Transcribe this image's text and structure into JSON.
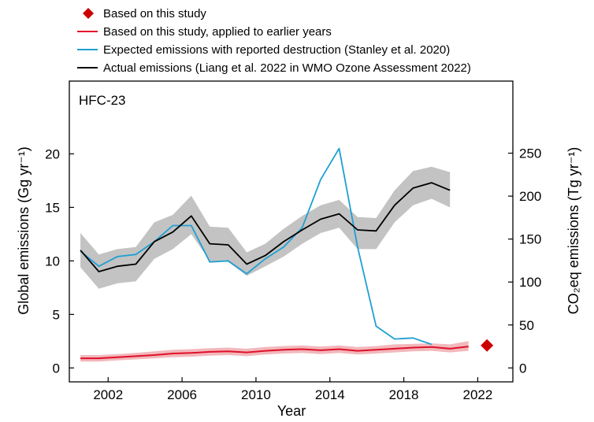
{
  "chart_data": {
    "type": "line",
    "panel_label": "HFC-23",
    "xlabel": "Year",
    "ylabel": "Global emissions (Gg yr⁻¹)",
    "y2label": "CO₂eq emissions (Tg yr⁻¹)",
    "xlim": [
      1999.9,
      2023.9
    ],
    "ylim": [
      -1.3,
      26.8
    ],
    "y2lim": [
      -16.2,
      333.9
    ],
    "x_ticks": [
      2002,
      2006,
      2010,
      2014,
      2018,
      2022
    ],
    "y_ticks": [
      0,
      5,
      10,
      15,
      20
    ],
    "y2_ticks": [
      0,
      50,
      100,
      150,
      200,
      250
    ],
    "grid": false,
    "legend_position": "top-left",
    "legend": [
      {
        "label": "Based on this study",
        "marker": "diamond",
        "color": "#cc0000"
      },
      {
        "label": "Based on this study, applied to earlier years",
        "marker": "line",
        "color": "#e0102a"
      },
      {
        "label": "Expected emissions with reported destruction (Stanley et al. 2020)",
        "marker": "line",
        "color": "#1f9fd3"
      },
      {
        "label": "Actual emissions (Liang et al. 2022 in WMO Ozone Assessment 2022)",
        "marker": "line",
        "color": "#000000"
      }
    ],
    "colors": {
      "actual_line": "#000000",
      "actual_band": "#c3c3c3",
      "expected_line": "#1f9fd3",
      "study_line": "#e0102a",
      "study_band": "#f2b8bb",
      "study_point": "#cc0000"
    },
    "series": [
      {
        "name": "Actual emissions (Liang et al. 2022 in WMO Ozone Assessment 2022)",
        "x": [
          2000.5,
          2001.5,
          2002.5,
          2003.5,
          2004.5,
          2005.5,
          2006.5,
          2007.5,
          2008.5,
          2009.5,
          2010.5,
          2011.5,
          2012.5,
          2013.5,
          2014.5,
          2015.5,
          2016.5,
          2017.5,
          2018.5,
          2019.5,
          2020.5
        ],
        "y": [
          11.0,
          9.0,
          9.5,
          9.7,
          11.8,
          12.7,
          14.2,
          11.6,
          11.5,
          9.7,
          10.5,
          11.8,
          12.9,
          13.9,
          14.4,
          12.9,
          12.8,
          15.2,
          16.8,
          17.3,
          16.6
        ],
        "lower": [
          9.4,
          7.4,
          7.9,
          8.1,
          10.2,
          11.1,
          12.5,
          10.0,
          9.9,
          8.6,
          9.5,
          10.4,
          11.6,
          12.6,
          13.1,
          11.1,
          11.1,
          13.6,
          15.2,
          15.8,
          15.0
        ],
        "upper": [
          12.6,
          10.6,
          11.1,
          11.3,
          13.6,
          14.3,
          16.1,
          13.2,
          13.1,
          10.8,
          11.6,
          13.0,
          14.2,
          15.2,
          15.7,
          14.1,
          14.0,
          16.6,
          18.4,
          18.8,
          18.3
        ]
      },
      {
        "name": "Expected emissions with reported destruction (Stanley et al. 2020)",
        "x": [
          2000.5,
          2001.5,
          2002.5,
          2003.5,
          2004.5,
          2005.5,
          2006.5,
          2007.5,
          2008.5,
          2009.5,
          2010.5,
          2011.5,
          2012.5,
          2013.5,
          2014.5,
          2015.5,
          2016.5,
          2017.5,
          2018.5,
          2019.5
        ],
        "y": [
          10.9,
          9.5,
          10.4,
          10.6,
          11.8,
          13.3,
          13.3,
          9.9,
          10.0,
          8.8,
          10.2,
          11.3,
          13.1,
          17.6,
          20.5,
          11.3,
          3.9,
          2.7,
          2.8,
          2.2
        ]
      },
      {
        "name": "Based on this study, applied to earlier years",
        "x": [
          2000.5,
          2001.5,
          2002.5,
          2003.5,
          2004.5,
          2005.5,
          2006.5,
          2007.5,
          2008.5,
          2009.5,
          2010.5,
          2011.5,
          2012.5,
          2013.5,
          2014.5,
          2015.5,
          2016.5,
          2017.5,
          2018.5,
          2019.5,
          2020.5,
          2021.5
        ],
        "y": [
          0.9,
          0.9,
          1.0,
          1.1,
          1.2,
          1.35,
          1.4,
          1.5,
          1.55,
          1.45,
          1.6,
          1.7,
          1.75,
          1.65,
          1.75,
          1.6,
          1.7,
          1.8,
          1.9,
          1.95,
          1.8,
          2.0
        ],
        "lower": [
          0.6,
          0.6,
          0.7,
          0.8,
          0.9,
          1.0,
          1.05,
          1.15,
          1.2,
          1.1,
          1.25,
          1.35,
          1.4,
          1.3,
          1.4,
          1.25,
          1.35,
          1.45,
          1.55,
          1.6,
          1.45,
          1.6
        ],
        "upper": [
          1.2,
          1.2,
          1.3,
          1.4,
          1.55,
          1.7,
          1.75,
          1.85,
          1.9,
          1.8,
          1.95,
          2.05,
          2.1,
          2.0,
          2.1,
          1.95,
          2.05,
          2.2,
          2.25,
          2.3,
          2.2,
          2.5
        ]
      },
      {
        "name": "Based on this study",
        "x": [
          2022.5
        ],
        "y": [
          2.1
        ]
      }
    ]
  }
}
